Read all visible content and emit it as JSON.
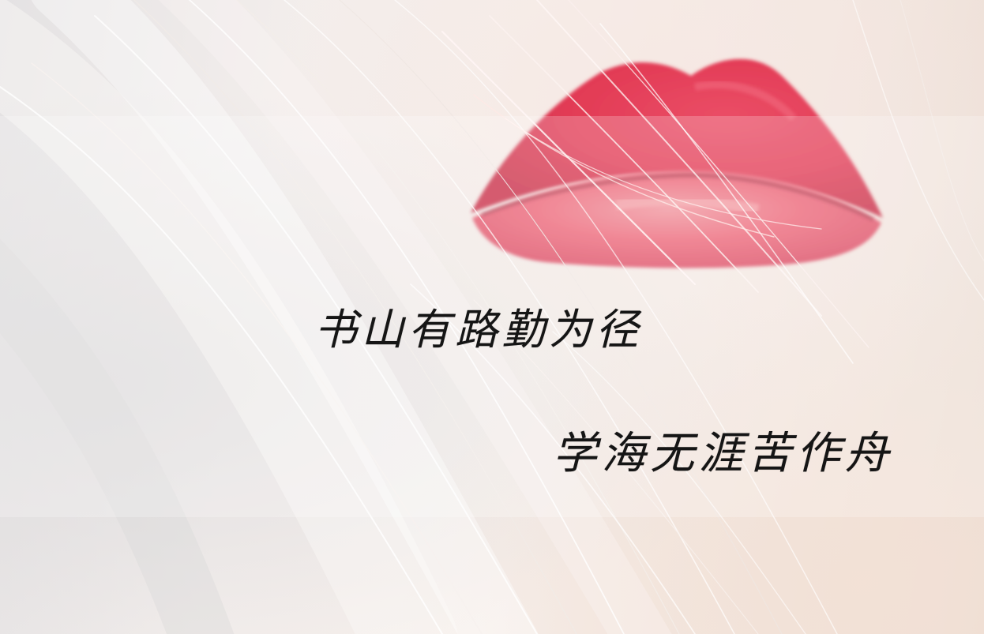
{
  "photo": {
    "subject": "close-up of red lips with light blonde hair strands",
    "lip_color": "#e03c55",
    "hair_color": "#f2ece7",
    "skin_color": "#f3e4dc"
  },
  "overlay": {
    "band_color": "#ffffff"
  },
  "poem": {
    "line_1": "书山有路勤为径",
    "line_2": "学海无涯苦作舟",
    "text_color": "#151515"
  }
}
